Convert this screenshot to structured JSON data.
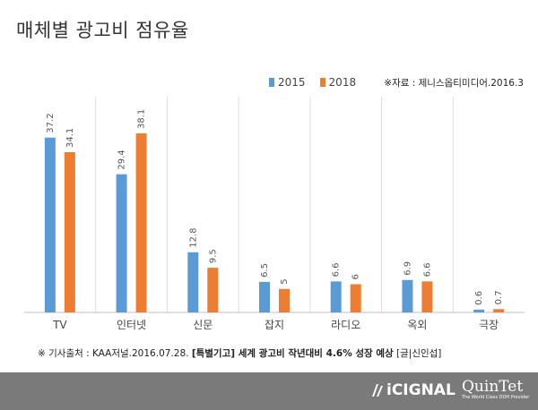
{
  "chart_data": {
    "type": "bar",
    "title": "매체별 광고비 점유율",
    "categories": [
      "TV",
      "인터넷",
      "신문",
      "잡지",
      "라디오",
      "옥외",
      "극장"
    ],
    "series": [
      {
        "name": "2015",
        "values": [
          37.2,
          29.4,
          12.8,
          6.5,
          6.6,
          6.9,
          0.6
        ],
        "labels": [
          "37.2",
          "29.4",
          "12.8",
          "6.5",
          "6.6",
          "6.9",
          "0.6"
        ],
        "color": "#5b9bd5"
      },
      {
        "name": "2018",
        "values": [
          34.1,
          38.1,
          9.5,
          5,
          6,
          6.6,
          0.7
        ],
        "labels": [
          "34.1",
          "38.1",
          "9.5",
          "5",
          "6",
          "6.6",
          "0.7"
        ],
        "color": "#ed7d31"
      }
    ],
    "ylim": [
      0,
      40
    ],
    "grid": "vertical-category-separators",
    "legend": "top-center"
  },
  "source_note": "※자료 : 제니스옵티미디어.2016.3",
  "footnote": {
    "prefix": "※ 기사출처 : KAA저널.2016.07.28. ",
    "bold": "[특별기고] 세계 광고비 작년대비 4.6% 성장 예상",
    "suffix": " [글|신인섭]"
  },
  "footer": {
    "brand1": "iCIGNAL",
    "brand2": "QuinTet",
    "brand2_tag": "The World Class OOH Provider"
  }
}
